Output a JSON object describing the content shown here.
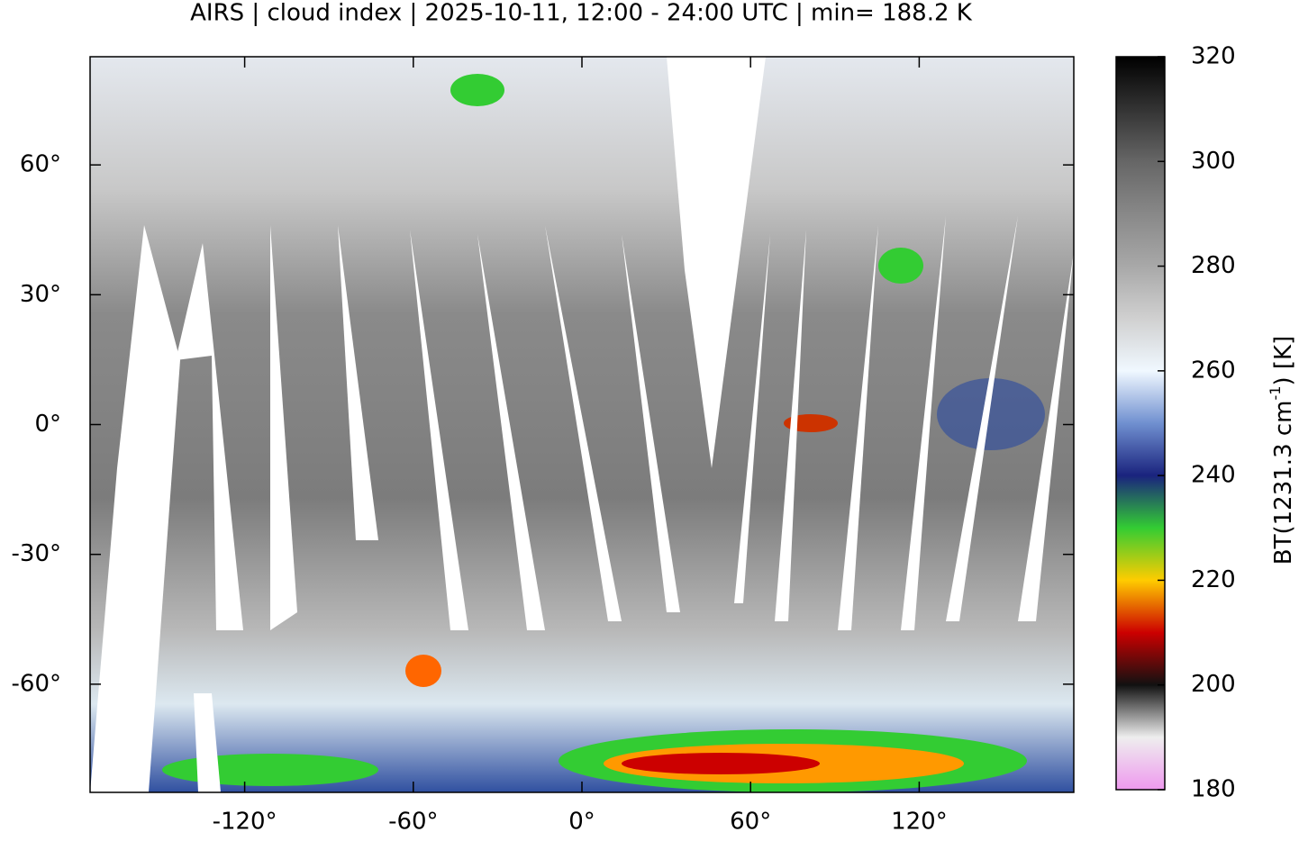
{
  "chart_data": {
    "type": "map",
    "title": "AIRS | cloud index | 2025-10-11, 12:00 - 24:00 UTC | min= 188.2 K",
    "xlim": [
      -175,
      175
    ],
    "ylim": [
      -85,
      85
    ],
    "xticks": [
      {
        "value": -120,
        "label": "-120°"
      },
      {
        "value": -60,
        "label": "-60°"
      },
      {
        "value": 0,
        "label": "0°"
      },
      {
        "value": 60,
        "label": "60°"
      },
      {
        "value": 120,
        "label": "120°"
      }
    ],
    "yticks": [
      {
        "value": 60,
        "label": "60°"
      },
      {
        "value": 30,
        "label": "30°"
      },
      {
        "value": 0,
        "label": "0°"
      },
      {
        "value": -30,
        "label": "-30°"
      },
      {
        "value": -60,
        "label": "-60°"
      }
    ],
    "colorbar": {
      "lim": [
        180,
        320
      ],
      "ticks": [
        180,
        200,
        220,
        240,
        260,
        280,
        300,
        320
      ],
      "label": {
        "base": "BT(1231.3 cm",
        "sup": "-1",
        "tail": ") [K]"
      },
      "colors": [
        "#ee99ee",
        "#eeeeee",
        "#111111",
        "#cc0000",
        "#ffcc00",
        "#33cc33",
        "#1a237e",
        "#7090d0",
        "#f0f8ff",
        "#d0d0d0",
        "#a8a8a8",
        "#888888",
        "#666666",
        "#333333",
        "#000000"
      ]
    }
  }
}
